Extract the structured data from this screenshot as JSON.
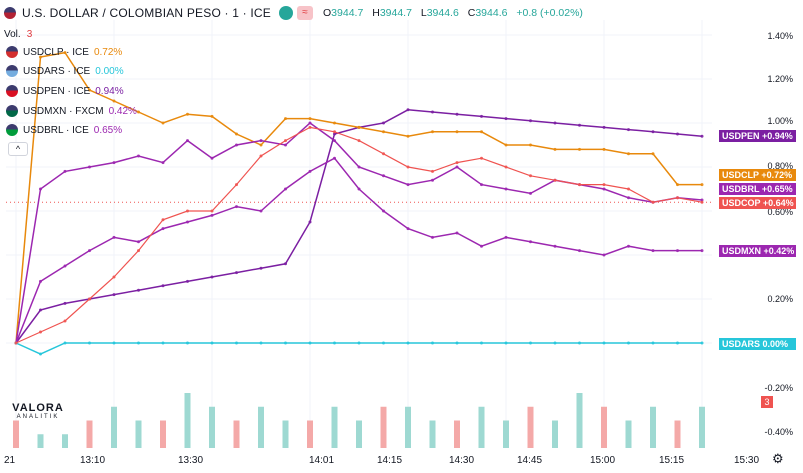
{
  "header": {
    "title": "U.S. DOLLAR / COLOMBIAN PESO · 1 · ICE",
    "wave_badge": "≈",
    "ohlc": [
      {
        "k": "O",
        "v": "3944.7"
      },
      {
        "k": "H",
        "v": "3944.7"
      },
      {
        "k": "L",
        "v": "3944.6"
      },
      {
        "k": "C",
        "v": "3944.6"
      }
    ],
    "change": "+0.8 (+0.02%)"
  },
  "volume": {
    "label": "Vol.",
    "value": "3"
  },
  "legend": [
    {
      "name": "USDCLP · ICE",
      "pct": "0.72%",
      "color": "#e8890c"
    },
    {
      "name": "USDARS · ICE",
      "pct": "0.00%",
      "color": "#26c6da"
    },
    {
      "name": "USDPEN · ICE",
      "pct": "0.94%",
      "color": "#e03a3e"
    },
    {
      "name": "USDMXN · FXCM",
      "pct": "0.42%",
      "color": "#9c27b0"
    },
    {
      "name": "USDBRL · ICE",
      "pct": "0.65%",
      "color": "#9c27b0"
    }
  ],
  "collapse_label": "^",
  "logo": {
    "main": "VALORA",
    "sub": "ANALITIK"
  },
  "y_axis_labels": [
    "1.40%",
    "1.20%",
    "1.00%",
    "0.80%",
    "0.60%",
    "0.20%",
    "-0.20%",
    "-0.40%"
  ],
  "x_axis_labels": [
    "21",
    "13:10",
    "13:30",
    "14:01",
    "14:15",
    "14:30",
    "14:45",
    "15:00",
    "15:15",
    "15:30"
  ],
  "price_labels": [
    {
      "text": "USDPEN  +0.94%",
      "color": "#7b1fa2"
    },
    {
      "text": "USDCLP  +0.72%",
      "color": "#e8890c"
    },
    {
      "text": "USDBRL  +0.65%",
      "color": "#9c27b0"
    },
    {
      "text": "USDCOP  +0.64%",
      "color": "#ef5350"
    },
    {
      "text": "USDMXN  +0.42%",
      "color": "#9c27b0"
    },
    {
      "text": "USDARS  0.00%",
      "color": "#26c6da"
    }
  ],
  "volume_badge": "3",
  "gear_icon": "gear-icon",
  "chart_data": {
    "type": "line",
    "x": [
      "13:00",
      "13:05",
      "13:10",
      "13:15",
      "13:20",
      "13:25",
      "13:30",
      "13:35",
      "13:40",
      "13:45",
      "13:50",
      "13:55",
      "14:01",
      "14:05",
      "14:10",
      "14:15",
      "14:20",
      "14:25",
      "14:30",
      "14:35",
      "14:40",
      "14:45",
      "14:50",
      "14:55",
      "15:00",
      "15:05",
      "15:10",
      "15:15",
      "15:20"
    ],
    "y_unit": "%",
    "ylim": [
      -0.45,
      1.45
    ],
    "series": [
      {
        "name": "USDPEN",
        "color": "#7b1fa2",
        "values": [
          0.0,
          0.15,
          0.18,
          0.2,
          0.22,
          0.24,
          0.26,
          0.28,
          0.3,
          0.32,
          0.34,
          0.36,
          0.55,
          0.95,
          0.98,
          1.0,
          1.06,
          1.05,
          1.04,
          1.03,
          1.02,
          1.01,
          1.0,
          0.99,
          0.98,
          0.97,
          0.96,
          0.95,
          0.94
        ]
      },
      {
        "name": "USDCLP",
        "color": "#e8890c",
        "values": [
          0.0,
          1.3,
          1.32,
          1.15,
          1.1,
          1.05,
          1.0,
          1.04,
          1.03,
          0.95,
          0.9,
          1.02,
          1.02,
          1.0,
          0.98,
          0.96,
          0.94,
          0.96,
          0.96,
          0.96,
          0.9,
          0.9,
          0.88,
          0.88,
          0.88,
          0.86,
          0.86,
          0.72,
          0.72
        ]
      },
      {
        "name": "USDBRL",
        "color": "#9c27b0",
        "values": [
          0.0,
          0.7,
          0.78,
          0.8,
          0.82,
          0.85,
          0.82,
          0.92,
          0.84,
          0.9,
          0.92,
          0.9,
          1.0,
          0.92,
          0.8,
          0.76,
          0.72,
          0.74,
          0.8,
          0.72,
          0.7,
          0.68,
          0.74,
          0.72,
          0.7,
          0.66,
          0.64,
          0.66,
          0.65
        ]
      },
      {
        "name": "USDMXN",
        "color": "#9c27b0",
        "values": [
          0.0,
          0.28,
          0.35,
          0.42,
          0.48,
          0.46,
          0.52,
          0.55,
          0.58,
          0.62,
          0.6,
          0.7,
          0.78,
          0.84,
          0.7,
          0.6,
          0.52,
          0.48,
          0.5,
          0.44,
          0.48,
          0.46,
          0.44,
          0.42,
          0.4,
          0.44,
          0.42,
          0.42,
          0.42
        ]
      },
      {
        "name": "USDARS",
        "color": "#26c6da",
        "values": [
          0.0,
          -0.05,
          0.0,
          0.0,
          0.0,
          0.0,
          0.0,
          0.0,
          0.0,
          0.0,
          0.0,
          0.0,
          0.0,
          0.0,
          0.0,
          0.0,
          0.0,
          0.0,
          0.0,
          0.0,
          0.0,
          0.0,
          0.0,
          0.0,
          0.0,
          0.0,
          0.0,
          0.0,
          0.0
        ]
      },
      {
        "name": "USDCOP",
        "color": "#ef5350",
        "values": [
          0.0,
          0.05,
          0.1,
          0.2,
          0.3,
          0.42,
          0.56,
          0.6,
          0.6,
          0.72,
          0.85,
          0.92,
          0.98,
          0.96,
          0.92,
          0.86,
          0.8,
          0.78,
          0.82,
          0.84,
          0.8,
          0.76,
          0.74,
          0.72,
          0.72,
          0.7,
          0.64,
          0.66,
          0.64
        ]
      }
    ],
    "volume": [
      2,
      1,
      1,
      2,
      3,
      2,
      2,
      4,
      3,
      2,
      3,
      2,
      2,
      3,
      2,
      3,
      3,
      2,
      2,
      3,
      2,
      3,
      2,
      4,
      3,
      2,
      3,
      2,
      3
    ]
  }
}
